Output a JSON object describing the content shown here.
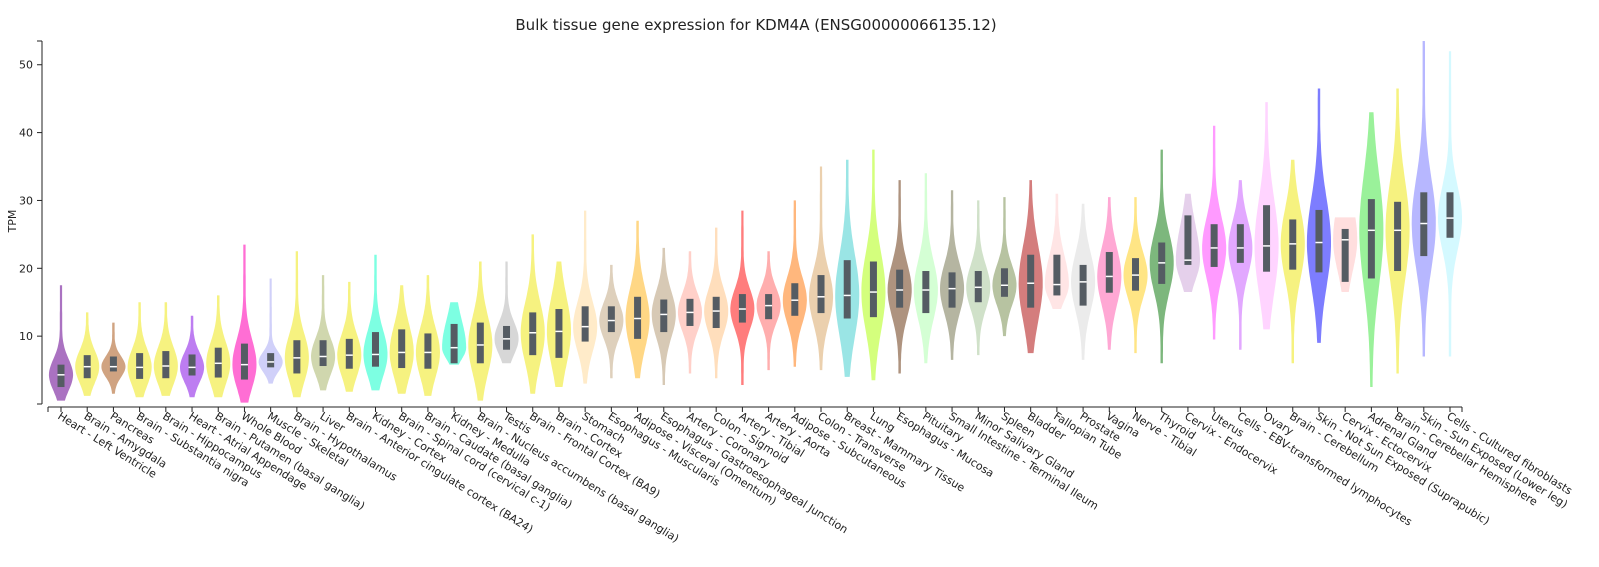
{
  "chart_data": {
    "type": "violin",
    "title": "Bulk tissue gene expression for KDM4A (ENSG00000066135.12)",
    "xlabel": "",
    "ylabel": "TPM",
    "ylim": [
      0,
      53.5
    ],
    "yticks": [
      10,
      20,
      30,
      40,
      50
    ],
    "grid": false,
    "legend": "none",
    "series": [
      {
        "category": "Heart - Left Ventricle",
        "color": "#9b59b6",
        "min": 0.5,
        "q1": 2.5,
        "median": 4.3,
        "q3": 5.8,
        "max": 17.5
      },
      {
        "category": "Brain - Amygdala",
        "color": "#f5f06a",
        "min": 1.2,
        "q1": 3.8,
        "median": 5.5,
        "q3": 7.2,
        "max": 13.5
      },
      {
        "category": "Pancreas",
        "color": "#c8936b",
        "min": 1.5,
        "q1": 4.8,
        "median": 5.5,
        "q3": 7.0,
        "max": 12.0
      },
      {
        "category": "Brain - Substantia nigra",
        "color": "#f5f06a",
        "min": 1.0,
        "q1": 3.7,
        "median": 5.4,
        "q3": 7.5,
        "max": 15.0
      },
      {
        "category": "Brain - Hippocampus",
        "color": "#f5f06a",
        "min": 1.2,
        "q1": 3.8,
        "median": 5.6,
        "q3": 7.8,
        "max": 15.0
      },
      {
        "category": "Heart - Atrial Appendage",
        "color": "#b266ee",
        "min": 1.0,
        "q1": 4.2,
        "median": 5.4,
        "q3": 7.3,
        "max": 13.0
      },
      {
        "category": "Brain - Putamen (basal ganglia)",
        "color": "#f5f06a",
        "min": 1.0,
        "q1": 3.9,
        "median": 6.0,
        "q3": 8.3,
        "max": 16.0
      },
      {
        "category": "Whole Blood",
        "color": "#ff55cc",
        "min": 0.2,
        "q1": 3.6,
        "median": 5.8,
        "q3": 8.9,
        "max": 23.5
      },
      {
        "category": "Muscle - Skeletal",
        "color": "#c8c8f8",
        "min": 3.0,
        "q1": 5.4,
        "median": 6.2,
        "q3": 7.5,
        "max": 18.5
      },
      {
        "category": "Brain - Hypothalamus",
        "color": "#f5f06a",
        "min": 1.0,
        "q1": 4.5,
        "median": 6.8,
        "q3": 9.4,
        "max": 22.5
      },
      {
        "category": "Liver",
        "color": "#c8d0a0",
        "min": 2.0,
        "q1": 5.6,
        "median": 7.0,
        "q3": 9.4,
        "max": 19.0
      },
      {
        "category": "Brain - Anterior cingulate cortex (BA24)",
        "color": "#f5f06a",
        "min": 1.8,
        "q1": 5.2,
        "median": 7.2,
        "q3": 9.6,
        "max": 18.0
      },
      {
        "category": "Kidney - Cortex",
        "color": "#66ffdd",
        "min": 2.0,
        "q1": 5.5,
        "median": 7.3,
        "q3": 10.6,
        "max": 22.0
      },
      {
        "category": "Brain - Spinal cord (cervical c-1)",
        "color": "#f5f06a",
        "min": 1.5,
        "q1": 5.3,
        "median": 7.6,
        "q3": 11.0,
        "max": 17.5
      },
      {
        "category": "Brain - Caudate (basal ganglia)",
        "color": "#f5f06a",
        "min": 1.2,
        "q1": 5.2,
        "median": 7.6,
        "q3": 10.4,
        "max": 19.0
      },
      {
        "category": "Kidney - Medulla",
        "color": "#66ffdd",
        "min": 5.8,
        "q1": 6.0,
        "median": 8.3,
        "q3": 11.8,
        "max": 15.0
      },
      {
        "category": "Brain - Nucleus accumbens (basal ganglia)",
        "color": "#f5f06a",
        "min": 0.5,
        "q1": 6.0,
        "median": 8.7,
        "q3": 12.0,
        "max": 21.0
      },
      {
        "category": "Testis",
        "color": "#d0d0d0",
        "min": 6.0,
        "q1": 8.0,
        "median": 9.6,
        "q3": 11.5,
        "max": 21.0
      },
      {
        "category": "Brain - Frontal Cortex (BA9)",
        "color": "#f5f06a",
        "min": 1.5,
        "q1": 7.2,
        "median": 10.5,
        "q3": 13.5,
        "max": 25.0
      },
      {
        "category": "Brain - Cortex",
        "color": "#f5f06a",
        "min": 2.5,
        "q1": 6.8,
        "median": 10.7,
        "q3": 14.0,
        "max": 21.0
      },
      {
        "category": "Stomach",
        "color": "#ffe8c0",
        "min": 3.0,
        "q1": 9.2,
        "median": 11.4,
        "q3": 14.4,
        "max": 28.5
      },
      {
        "category": "Esophagus - Muscularis",
        "color": "#d8c8b0",
        "min": 3.8,
        "q1": 10.6,
        "median": 12.3,
        "q3": 14.4,
        "max": 20.5
      },
      {
        "category": "Adipose - Visceral (Omentum)",
        "color": "#ffd070",
        "min": 3.8,
        "q1": 9.6,
        "median": 12.6,
        "q3": 15.8,
        "max": 27.0
      },
      {
        "category": "Esophagus - Gastroesophageal Junction",
        "color": "#d0c0a8",
        "min": 2.8,
        "q1": 10.6,
        "median": 13.2,
        "q3": 15.4,
        "max": 23.0
      },
      {
        "category": "Artery - Coronary",
        "color": "#ffc8c0",
        "min": 4.5,
        "q1": 11.5,
        "median": 13.5,
        "q3": 15.5,
        "max": 22.5
      },
      {
        "category": "Colon - Sigmoid",
        "color": "#ffd8b0",
        "min": 3.8,
        "q1": 11.2,
        "median": 13.7,
        "q3": 15.8,
        "max": 26.0
      },
      {
        "category": "Artery - Tibial",
        "color": "#ff6666",
        "min": 2.8,
        "q1": 12.0,
        "median": 14.0,
        "q3": 16.2,
        "max": 28.5
      },
      {
        "category": "Artery - Aorta",
        "color": "#ffa0a0",
        "min": 5.0,
        "q1": 12.5,
        "median": 14.5,
        "q3": 16.2,
        "max": 22.5
      },
      {
        "category": "Adipose - Subcutaneous",
        "color": "#ffaa66",
        "min": 5.5,
        "q1": 13.0,
        "median": 15.3,
        "q3": 17.8,
        "max": 30.0
      },
      {
        "category": "Colon - Transverse",
        "color": "#e8c8a0",
        "min": 5.0,
        "q1": 13.4,
        "median": 15.8,
        "q3": 19.0,
        "max": 35.0
      },
      {
        "category": "Breast - Mammary Tissue",
        "color": "#88e0e0",
        "min": 4.0,
        "q1": 12.6,
        "median": 16.0,
        "q3": 21.2,
        "max": 36.0
      },
      {
        "category": "Lung",
        "color": "#ccff66",
        "min": 3.5,
        "q1": 12.8,
        "median": 16.5,
        "q3": 21.0,
        "max": 37.5
      },
      {
        "category": "Esophagus - Mucosa",
        "color": "#a08068",
        "min": 4.5,
        "q1": 14.2,
        "median": 16.8,
        "q3": 19.8,
        "max": 33.0
      },
      {
        "category": "Pituitary",
        "color": "#ccffcc",
        "min": 6.0,
        "q1": 13.4,
        "median": 16.8,
        "q3": 19.6,
        "max": 34.0
      },
      {
        "category": "Small Intestine - Terminal Ileum",
        "color": "#a8a890",
        "min": 6.5,
        "q1": 14.2,
        "median": 17.0,
        "q3": 19.4,
        "max": 31.5
      },
      {
        "category": "Minor Salivary Gland",
        "color": "#c8dcc0",
        "min": 7.2,
        "q1": 15.0,
        "median": 17.2,
        "q3": 19.6,
        "max": 30.0
      },
      {
        "category": "Spleen",
        "color": "#aab890",
        "min": 10.0,
        "q1": 15.8,
        "median": 17.5,
        "q3": 20.0,
        "max": 30.5
      },
      {
        "category": "Bladder",
        "color": "#cc6666",
        "min": 7.5,
        "q1": 14.2,
        "median": 17.8,
        "q3": 22.0,
        "max": 33.0
      },
      {
        "category": "Fallopian Tube",
        "color": "#ffe0e0",
        "min": 14.0,
        "q1": 16.0,
        "median": 17.6,
        "q3": 22.0,
        "max": 31.0
      },
      {
        "category": "Prostate",
        "color": "#e8e8e8",
        "min": 6.5,
        "q1": 14.5,
        "median": 18.0,
        "q3": 20.5,
        "max": 29.5
      },
      {
        "category": "Vagina",
        "color": "#ff99cc",
        "min": 8.0,
        "q1": 16.4,
        "median": 18.8,
        "q3": 22.4,
        "max": 30.5
      },
      {
        "category": "Nerve - Tibial",
        "color": "#ffe070",
        "min": 7.5,
        "q1": 16.7,
        "median": 19.0,
        "q3": 21.5,
        "max": 30.5
      },
      {
        "category": "Thyroid",
        "color": "#66aa66",
        "min": 6.0,
        "q1": 17.7,
        "median": 20.8,
        "q3": 23.8,
        "max": 37.5
      },
      {
        "category": "Cervix - Endocervix",
        "color": "#e0c8e8",
        "min": 16.5,
        "q1": 20.5,
        "median": 21.2,
        "q3": 27.8,
        "max": 31.0
      },
      {
        "category": "Uterus",
        "color": "#ff88ff",
        "min": 9.5,
        "q1": 20.2,
        "median": 23.0,
        "q3": 26.5,
        "max": 41.0
      },
      {
        "category": "Cells - EBV-transformed lymphocytes",
        "color": "#dd99ff",
        "min": 8.0,
        "q1": 20.8,
        "median": 23.0,
        "q3": 26.5,
        "max": 33.0
      },
      {
        "category": "Ovary",
        "color": "#ffccff",
        "min": 11.0,
        "q1": 19.5,
        "median": 23.3,
        "q3": 29.3,
        "max": 44.5
      },
      {
        "category": "Brain - Cerebellum",
        "color": "#f5f06a",
        "min": 6.0,
        "q1": 19.8,
        "median": 23.6,
        "q3": 27.2,
        "max": 36.0
      },
      {
        "category": "Skin - Not Sun Exposed (Suprapubic)",
        "color": "#6666ff",
        "min": 9.0,
        "q1": 19.4,
        "median": 23.8,
        "q3": 28.6,
        "max": 46.5
      },
      {
        "category": "Cervix - Ectocervix",
        "color": "#ffd8d8",
        "min": 16.5,
        "q1": 18.0,
        "median": 24.2,
        "q3": 25.8,
        "max": 27.5
      },
      {
        "category": "Adrenal Gland",
        "color": "#88ee88",
        "min": 2.5,
        "q1": 18.5,
        "median": 25.6,
        "q3": 30.2,
        "max": 43.0
      },
      {
        "category": "Brain - Cerebellar Hemisphere",
        "color": "#f5f06a",
        "min": 4.5,
        "q1": 19.6,
        "median": 25.6,
        "q3": 29.8,
        "max": 46.5
      },
      {
        "category": "Skin - Sun Exposed (Lower leg)",
        "color": "#aaaaff",
        "min": 7.0,
        "q1": 21.8,
        "median": 26.6,
        "q3": 31.2,
        "max": 53.5
      },
      {
        "category": "Cells - Cultured fibroblasts",
        "color": "#ccf8ff",
        "min": 7.0,
        "q1": 24.5,
        "median": 27.4,
        "q3": 31.2,
        "max": 52.0
      }
    ]
  }
}
